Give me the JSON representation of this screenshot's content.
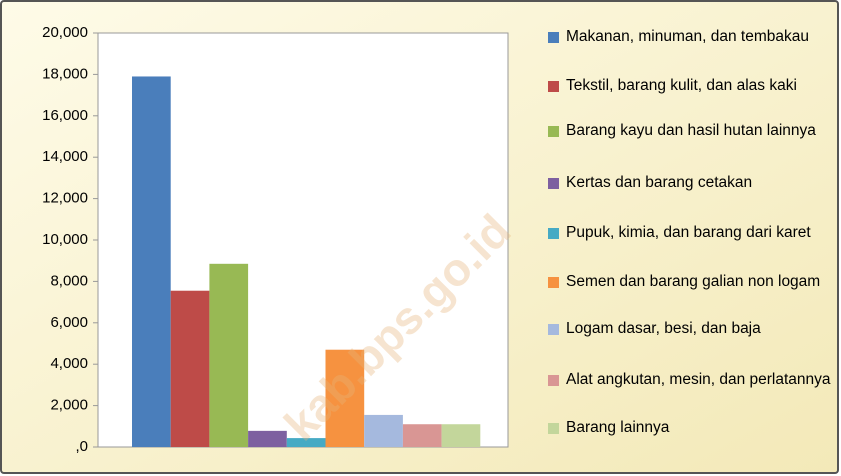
{
  "chart_data": {
    "type": "bar",
    "series": [
      {
        "name": "Makanan, minuman, dan tembakau",
        "color": "#4a7ebb",
        "values": [
          17900
        ]
      },
      {
        "name": "Tekstil, barang kulit, dan alas kaki",
        "color": "#be4b48",
        "values": [
          7550
        ]
      },
      {
        "name": "Barang kayu dan hasil hutan lainnya",
        "color": "#98b954",
        "values": [
          8850
        ]
      },
      {
        "name": "Kertas dan barang cetakan",
        "color": "#7d60a0",
        "values": [
          780
        ]
      },
      {
        "name": "Pupuk, kimia, dan barang dari karet",
        "color": "#46aac4",
        "values": [
          430
        ]
      },
      {
        "name": "Semen dan barang galian non logam",
        "color": "#f69240",
        "values": [
          4700
        ]
      },
      {
        "name": "Logam dasar, besi, dan baja",
        "color": "#a5b9de",
        "values": [
          1550
        ]
      },
      {
        "name": "Alat angkutan, mesin, dan perlatannya",
        "color": "#d99694",
        "values": [
          1100
        ]
      },
      {
        "name": "Barang lainnya",
        "color": "#c3d69b",
        "values": [
          1100
        ]
      }
    ],
    "ylim": [
      0,
      20000
    ],
    "yticks": [
      {
        "value": 0,
        "label": ",0"
      },
      {
        "value": 2000,
        "label": "2,000"
      },
      {
        "value": 4000,
        "label": "4,000"
      },
      {
        "value": 6000,
        "label": "6,000"
      },
      {
        "value": 8000,
        "label": "8,000"
      },
      {
        "value": 10000,
        "label": "10,000"
      },
      {
        "value": 12000,
        "label": "12,000"
      },
      {
        "value": 14000,
        "label": "14,000"
      },
      {
        "value": 16000,
        "label": "16,000"
      },
      {
        "value": 18000,
        "label": "18,000"
      },
      {
        "value": 20000,
        "label": "20,000"
      }
    ],
    "grid": false,
    "legend": "right",
    "watermark": "kab.bps.go.id"
  }
}
